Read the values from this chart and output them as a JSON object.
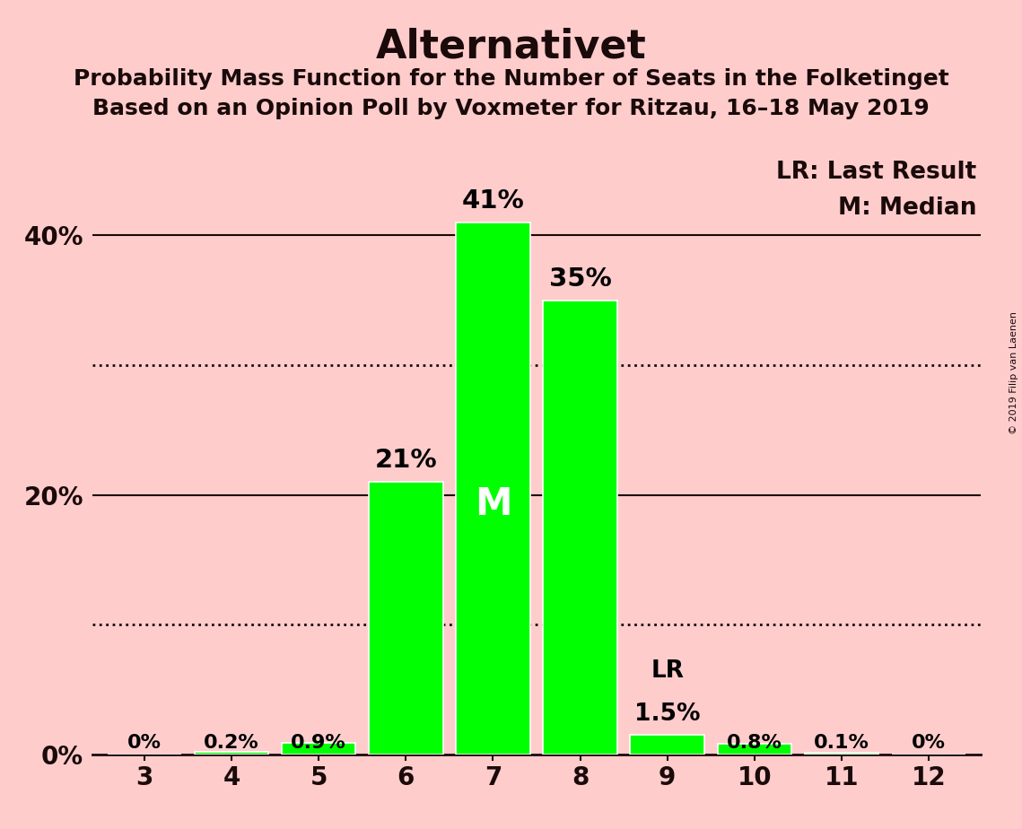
{
  "title": "Alternativet",
  "subtitle1": "Probability Mass Function for the Number of Seats in the Folketinget",
  "subtitle2": "Based on an Opinion Poll by Voxmeter for Ritzau, 16–18 May 2019",
  "copyright": "© 2019 Filip van Laenen",
  "seats": [
    3,
    4,
    5,
    6,
    7,
    8,
    9,
    10,
    11,
    12
  ],
  "probabilities": [
    0.0,
    0.2,
    0.9,
    21.0,
    41.0,
    35.0,
    1.5,
    0.8,
    0.1,
    0.0
  ],
  "labels": [
    "0%",
    "0.2%",
    "0.9%",
    "21%",
    "41%",
    "35%",
    "1.5%",
    "0.8%",
    "0.1%",
    "0%"
  ],
  "bar_color": "#00ff00",
  "bar_edgecolor": "white",
  "background_color": "#ffcccc",
  "title_fontsize": 32,
  "subtitle_fontsize": 18,
  "label_fontsize": 19,
  "tick_fontsize": 20,
  "median_seat": 7,
  "last_result_seat": 9,
  "yticks": [
    0,
    20,
    40
  ],
  "ytick_labels": [
    "0%",
    "20%",
    "40%"
  ],
  "ylim": [
    0,
    46
  ],
  "solid_lines": [
    20,
    40
  ],
  "dotted_lines": [
    10,
    30
  ],
  "legend_text1": "LR: Last Result",
  "legend_text2": "M: Median"
}
